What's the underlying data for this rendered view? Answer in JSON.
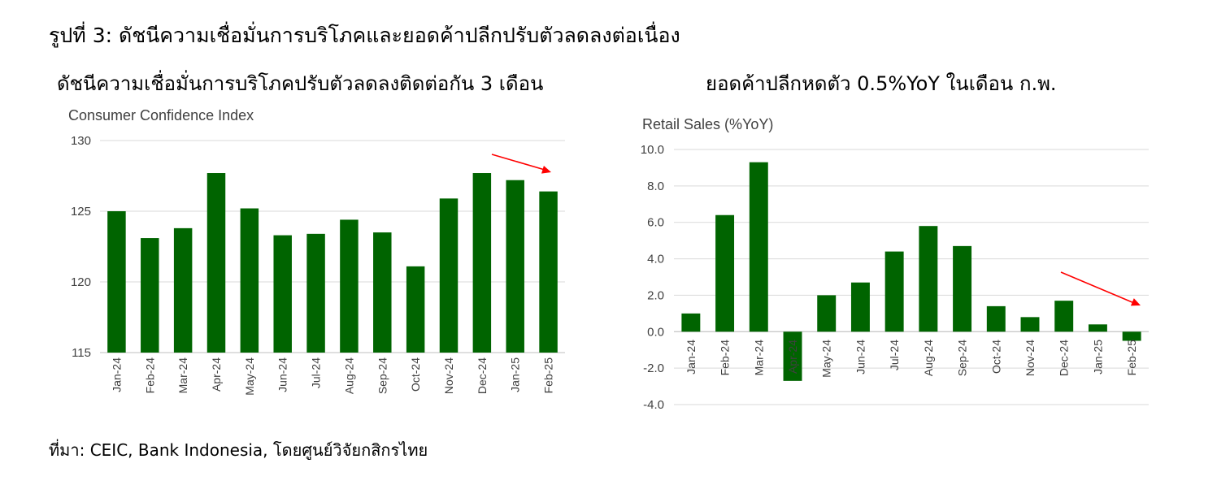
{
  "figure_title": "รูปที่ 3: ดัชนีความเชื่อมั่นการบริโภคและยอดค้าปลีกปรับตัวลดลงต่อเนื่อง",
  "source": "ที่มา: CEIC, Bank Indonesia, โดยศูนย์วิจัยกสิกรไทย",
  "colors": {
    "bar": "#006400",
    "arrow": "#ff0000",
    "grid": "#d9d9d9"
  },
  "chart_data": [
    {
      "type": "bar",
      "heading": "ดัชนีความเชื่อมั่นการบริโภคปรับตัวลดลงติดต่อกัน 3 เดือน",
      "title": "Consumer Confidence Index",
      "categories": [
        "Jan-24",
        "Feb-24",
        "Mar-24",
        "Apr-24",
        "May-24",
        "Jun-24",
        "Jul-24",
        "Aug-24",
        "Sep-24",
        "Oct-24",
        "Nov-24",
        "Dec-24",
        "Jan-25",
        "Feb-25"
      ],
      "values": [
        125.0,
        123.1,
        123.8,
        127.7,
        125.2,
        123.3,
        123.4,
        124.4,
        123.5,
        121.1,
        125.9,
        127.7,
        127.2,
        126.4
      ],
      "ylim": [
        115,
        130
      ],
      "yticks": [
        "115",
        "120",
        "125",
        "130"
      ],
      "grid": true,
      "annotation": "downward-arrow"
    },
    {
      "type": "bar",
      "heading": "ยอดค้าปลีกหดตัว 0.5%YoY ในเดือน ก.พ.",
      "title": "Retail Sales (%YoY)",
      "categories": [
        "Jan-24",
        "Feb-24",
        "Mar-24",
        "Apr-24",
        "May-24",
        "Jun-24",
        "Jul-24",
        "Aug-24",
        "Sep-24",
        "Oct-24",
        "Nov-24",
        "Dec-24",
        "Jan-25",
        "Feb-25"
      ],
      "values": [
        1.0,
        6.4,
        9.3,
        -2.7,
        2.0,
        2.7,
        4.4,
        5.8,
        4.7,
        1.4,
        0.8,
        1.7,
        0.4,
        -0.5
      ],
      "ylim": [
        -4.0,
        10.0
      ],
      "yticks": [
        "-4.0",
        "-2.0",
        "0.0",
        "2.0",
        "4.0",
        "6.0",
        "8.0",
        "10.0"
      ],
      "grid": true,
      "annotation": "downward-arrow"
    }
  ]
}
